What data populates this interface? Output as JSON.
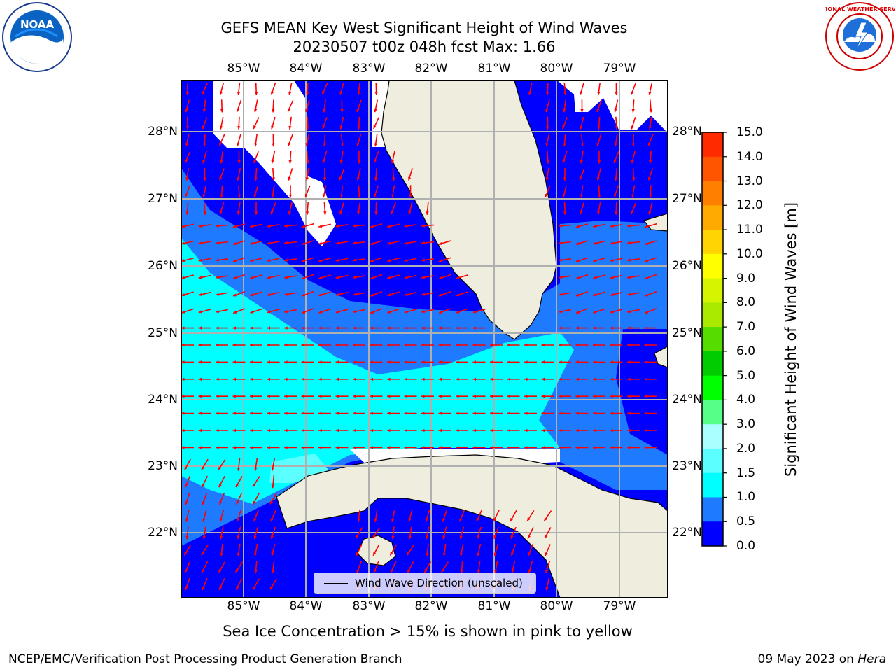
{
  "header": {
    "title_line1": "GEFS MEAN Key West Significant Height of Wind Waves",
    "title_line2": "20230507 t00z 048h fcst   Max: 1.66"
  },
  "logos": {
    "left": {
      "text": "NOAA",
      "icon": "noaa-logo"
    },
    "right": {
      "text": "NATIONAL WEATHER SERVICE",
      "icon": "nws-logo"
    }
  },
  "map": {
    "lon_ticks": [
      "85°W",
      "84°W",
      "83°W",
      "82°W",
      "81°W",
      "80°W",
      "79°W"
    ],
    "lat_ticks": [
      "28°N",
      "27°N",
      "26°N",
      "25°N",
      "24°N",
      "23°N",
      "22°N"
    ],
    "legend_label": "Wind Wave Direction (unscaled)",
    "colors": {
      "land": "#efedde",
      "nodata": "#ffffff",
      "band_0_0.5": "#0000ff",
      "band_0.5_1.0": "#1e7bff",
      "band_1.0_1.5": "#00ffff",
      "band_1.5_2.0": "#5cffff",
      "arrows": "#ff0000",
      "grid": "#b0b0b0"
    }
  },
  "colorbar": {
    "label": "Significant Height of Wind Waves [m]",
    "ticks": [
      "15.0",
      "14.0",
      "13.0",
      "12.0",
      "11.0",
      "10.0",
      "9.0",
      "8.0",
      "7.0",
      "6.0",
      "5.0",
      "4.0",
      "3.0",
      "2.0",
      "1.5",
      "1.0",
      "0.5",
      "0.0"
    ],
    "colors": [
      "#ff0000",
      "#ff2a00",
      "#ff5500",
      "#ff7f00",
      "#ffaa00",
      "#ffd400",
      "#ffff00",
      "#d4f400",
      "#aaea00",
      "#55dd00",
      "#00cc00",
      "#00ff00",
      "#55ff88",
      "#aaffff",
      "#5cffff",
      "#00ffff",
      "#1e7bff",
      "#0000ff"
    ]
  },
  "caption": "Sea Ice Concentration > 15% is shown in pink to yellow",
  "footer": {
    "left": "NCEP/EMC/Verification Post Processing Product Generation Branch",
    "right_prefix": "09 May 2023 on ",
    "right_host": "Hera"
  }
}
